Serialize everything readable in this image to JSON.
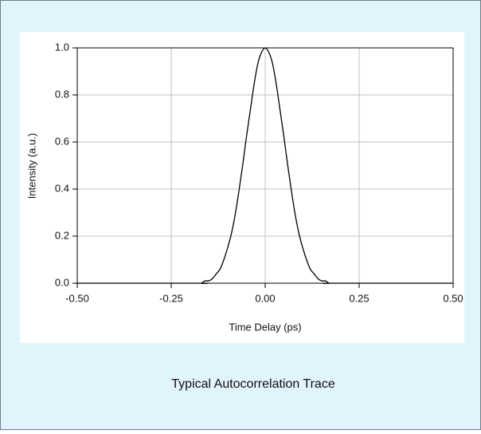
{
  "chart_data": {
    "type": "line",
    "caption": "Typical Autocorrelation Trace",
    "xlabel": "Time Delay (ps)",
    "ylabel": "Intensity (a.u.)",
    "x": [
      -0.5,
      -0.18,
      -0.17,
      -0.16,
      -0.15,
      -0.14,
      -0.13,
      -0.12,
      -0.11,
      -0.1,
      -0.09,
      -0.08,
      -0.07,
      -0.06,
      -0.05,
      -0.04,
      -0.03,
      -0.02,
      -0.01,
      0.0,
      0.01,
      0.02,
      0.03,
      0.04,
      0.05,
      0.06,
      0.07,
      0.08,
      0.09,
      0.1,
      0.11,
      0.12,
      0.13,
      0.14,
      0.15,
      0.16,
      0.17,
      0.18,
      0.5
    ],
    "series": [
      {
        "color": "#000000",
        "values": [
          0,
          0,
          0,
          0.01,
          0.01,
          0.02,
          0.04,
          0.06,
          0.1,
          0.15,
          0.21,
          0.29,
          0.39,
          0.5,
          0.62,
          0.73,
          0.84,
          0.93,
          0.98,
          1.0,
          0.98,
          0.93,
          0.84,
          0.73,
          0.62,
          0.5,
          0.39,
          0.29,
          0.21,
          0.15,
          0.1,
          0.06,
          0.04,
          0.02,
          0.01,
          0.01,
          0,
          0,
          0
        ]
      }
    ],
    "xlim": [
      -0.5,
      0.5
    ],
    "xticks": [
      {
        "value": -0.5,
        "label": "-0.50"
      },
      {
        "value": -0.25,
        "label": "-0.25"
      },
      {
        "value": 0,
        "label": "0.00"
      },
      {
        "value": 0.25,
        "label": "0.25"
      },
      {
        "value": 0.5,
        "label": "0.50"
      }
    ],
    "ylim": [
      0,
      1
    ],
    "yticks": [
      {
        "value": 0,
        "label": "0.0"
      },
      {
        "value": 0.2,
        "label": "0.2"
      },
      {
        "value": 0.4,
        "label": "0.4"
      },
      {
        "value": 0.6,
        "label": "0.6"
      },
      {
        "value": 0.8,
        "label": "0.8"
      },
      {
        "value": 1,
        "label": "1.0"
      }
    ],
    "grid": true
  }
}
